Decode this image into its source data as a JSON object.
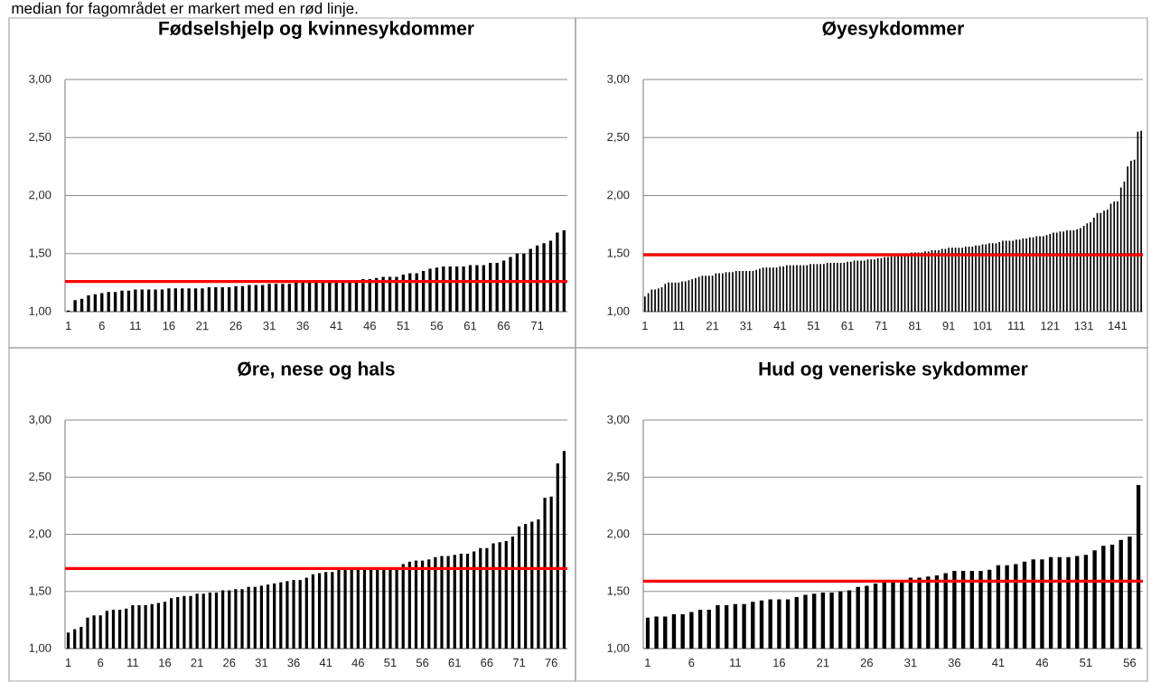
{
  "chart_data": [
    {
      "type": "bar",
      "title": "Fødselshjelp og kvinnesykdommer",
      "annotations": [
        "median for fagområdet er markert med en rød linje."
      ],
      "categories": [
        "1",
        null,
        null,
        null,
        null,
        "6",
        null,
        null,
        null,
        null,
        "11",
        null,
        null,
        null,
        null,
        "16",
        null,
        null,
        null,
        null,
        "21",
        null,
        null,
        null,
        null,
        "26",
        null,
        null,
        null,
        null,
        "31",
        null,
        null,
        null,
        null,
        "36",
        null,
        null,
        null,
        null,
        "41",
        null,
        null,
        null,
        null,
        "46",
        null,
        null,
        null,
        null,
        "51",
        null,
        null,
        null,
        null,
        "56",
        null,
        null,
        null,
        null,
        "61",
        null,
        null,
        null,
        null,
        "66",
        null,
        null,
        null,
        null,
        "71",
        null,
        null,
        null,
        null
      ],
      "values": [
        1.01,
        1.1,
        1.11,
        1.14,
        1.15,
        1.16,
        1.17,
        1.17,
        1.18,
        1.18,
        1.19,
        1.19,
        1.19,
        1.19,
        1.19,
        1.2,
        1.2,
        1.2,
        1.2,
        1.2,
        1.2,
        1.21,
        1.21,
        1.21,
        1.21,
        1.22,
        1.22,
        1.23,
        1.23,
        1.23,
        1.24,
        1.24,
        1.24,
        1.24,
        1.25,
        1.25,
        1.25,
        1.25,
        1.26,
        1.26,
        1.26,
        1.26,
        1.26,
        1.26,
        1.28,
        1.28,
        1.29,
        1.3,
        1.3,
        1.3,
        1.32,
        1.33,
        1.33,
        1.35,
        1.37,
        1.38,
        1.39,
        1.39,
        1.39,
        1.39,
        1.4,
        1.4,
        1.4,
        1.42,
        1.42,
        1.44,
        1.47,
        1.5,
        1.5,
        1.54,
        1.57,
        1.59,
        1.61,
        1.68,
        1.7
      ],
      "color": "#000000",
      "ylim": [
        1,
        3
      ],
      "yticks": [
        {
          "value": 1,
          "label": "1,00"
        },
        {
          "value": 1.5,
          "label": "1,50"
        },
        {
          "value": 2,
          "label": "2,00"
        },
        {
          "value": 2.5,
          "label": "2,50"
        },
        {
          "value": 3,
          "label": "3,00"
        }
      ],
      "grid": "y",
      "ref_lines": [
        {
          "axis": "y",
          "value": 1.26,
          "color": "#ff0000"
        }
      ]
    },
    {
      "type": "bar",
      "title": "Øyesykdommer",
      "categories": [
        "1",
        null,
        null,
        null,
        null,
        null,
        null,
        null,
        null,
        null,
        "11",
        null,
        null,
        null,
        null,
        null,
        null,
        null,
        null,
        null,
        "21",
        null,
        null,
        null,
        null,
        null,
        null,
        null,
        null,
        null,
        "31",
        null,
        null,
        null,
        null,
        null,
        null,
        null,
        null,
        null,
        "41",
        null,
        null,
        null,
        null,
        null,
        null,
        null,
        null,
        null,
        "51",
        null,
        null,
        null,
        null,
        null,
        null,
        null,
        null,
        null,
        "61",
        null,
        null,
        null,
        null,
        null,
        null,
        null,
        null,
        null,
        "71",
        null,
        null,
        null,
        null,
        null,
        null,
        null,
        null,
        null,
        "81",
        null,
        null,
        null,
        null,
        null,
        null,
        null,
        null,
        null,
        "91",
        null,
        null,
        null,
        null,
        null,
        null,
        null,
        null,
        null,
        "101",
        null,
        null,
        null,
        null,
        null,
        null,
        null,
        null,
        null,
        "111",
        null,
        null,
        null,
        null,
        null,
        null,
        null,
        null,
        null,
        "121",
        null,
        null,
        null,
        null,
        null,
        null,
        null,
        null,
        null,
        "131",
        null,
        null,
        null,
        null,
        null,
        null,
        null,
        null,
        null,
        "141",
        null,
        null,
        null,
        null,
        null,
        null,
        null
      ],
      "values": [
        1.13,
        1.16,
        1.19,
        1.19,
        1.2,
        1.21,
        1.24,
        1.25,
        1.25,
        1.25,
        1.25,
        1.26,
        1.26,
        1.27,
        1.28,
        1.29,
        1.3,
        1.31,
        1.31,
        1.31,
        1.31,
        1.33,
        1.33,
        1.33,
        1.34,
        1.34,
        1.34,
        1.35,
        1.35,
        1.35,
        1.35,
        1.35,
        1.35,
        1.36,
        1.37,
        1.38,
        1.38,
        1.38,
        1.38,
        1.38,
        1.39,
        1.39,
        1.4,
        1.4,
        1.4,
        1.4,
        1.4,
        1.4,
        1.4,
        1.41,
        1.41,
        1.41,
        1.41,
        1.41,
        1.42,
        1.42,
        1.42,
        1.42,
        1.42,
        1.42,
        1.43,
        1.43,
        1.44,
        1.44,
        1.44,
        1.44,
        1.45,
        1.45,
        1.45,
        1.46,
        1.46,
        1.47,
        1.47,
        1.48,
        1.48,
        1.48,
        1.48,
        1.49,
        1.49,
        1.51,
        1.51,
        1.51,
        1.51,
        1.52,
        1.52,
        1.53,
        1.53,
        1.53,
        1.54,
        1.54,
        1.55,
        1.55,
        1.55,
        1.55,
        1.55,
        1.56,
        1.56,
        1.56,
        1.57,
        1.57,
        1.58,
        1.58,
        1.59,
        1.59,
        1.59,
        1.6,
        1.61,
        1.61,
        1.61,
        1.61,
        1.62,
        1.62,
        1.63,
        1.63,
        1.64,
        1.64,
        1.65,
        1.65,
        1.65,
        1.66,
        1.67,
        1.68,
        1.68,
        1.69,
        1.69,
        1.7,
        1.7,
        1.7,
        1.71,
        1.72,
        1.74,
        1.76,
        1.77,
        1.81,
        1.85,
        1.85,
        1.87,
        1.88,
        1.93,
        1.95,
        1.95,
        2.07,
        2.12,
        2.25,
        2.3,
        2.31,
        2.55,
        2.56
      ],
      "color": "#000000",
      "ylim": [
        1,
        3
      ],
      "yticks": [
        {
          "value": 1,
          "label": "1,00"
        },
        {
          "value": 1.5,
          "label": "1,50"
        },
        {
          "value": 2,
          "label": "2,00"
        },
        {
          "value": 2.5,
          "label": "2,50"
        },
        {
          "value": 3,
          "label": "3,00"
        }
      ],
      "grid": "y",
      "ref_lines": [
        {
          "axis": "y",
          "value": 1.49,
          "color": "#ff0000"
        }
      ]
    },
    {
      "type": "bar",
      "title": "Øre, nese og hals",
      "categories": [
        "1",
        null,
        null,
        null,
        null,
        "6",
        null,
        null,
        null,
        null,
        "11",
        null,
        null,
        null,
        null,
        "16",
        null,
        null,
        null,
        null,
        "21",
        null,
        null,
        null,
        null,
        "26",
        null,
        null,
        null,
        null,
        "31",
        null,
        null,
        null,
        null,
        "36",
        null,
        null,
        null,
        null,
        "41",
        null,
        null,
        null,
        null,
        "46",
        null,
        null,
        null,
        null,
        "51",
        null,
        null,
        null,
        null,
        "56",
        null,
        null,
        null,
        null,
        "61",
        null,
        null,
        null,
        null,
        "66",
        null,
        null,
        null,
        null,
        "71",
        null,
        null,
        null,
        null,
        "76",
        null,
        null
      ],
      "values": [
        1.14,
        1.17,
        1.19,
        1.27,
        1.29,
        1.29,
        1.33,
        1.34,
        1.34,
        1.35,
        1.38,
        1.38,
        1.38,
        1.39,
        1.4,
        1.41,
        1.44,
        1.45,
        1.46,
        1.46,
        1.48,
        1.48,
        1.49,
        1.49,
        1.51,
        1.51,
        1.52,
        1.52,
        1.54,
        1.54,
        1.55,
        1.56,
        1.57,
        1.58,
        1.59,
        1.6,
        1.6,
        1.62,
        1.65,
        1.66,
        1.67,
        1.67,
        1.69,
        1.69,
        1.69,
        1.69,
        1.7,
        1.7,
        1.7,
        1.7,
        1.71,
        1.71,
        1.74,
        1.76,
        1.77,
        1.77,
        1.78,
        1.8,
        1.81,
        1.81,
        1.82,
        1.83,
        1.83,
        1.85,
        1.88,
        1.88,
        1.92,
        1.93,
        1.94,
        1.98,
        2.07,
        2.09,
        2.11,
        2.13,
        2.32,
        2.33,
        2.62,
        2.73
      ],
      "color": "#000000",
      "ylim": [
        1,
        3
      ],
      "yticks": [
        {
          "value": 1,
          "label": "1,00"
        },
        {
          "value": 1.5,
          "label": "1,50"
        },
        {
          "value": 2,
          "label": "2,00"
        },
        {
          "value": 2.5,
          "label": "2,50"
        },
        {
          "value": 3,
          "label": "3,00"
        }
      ],
      "grid": "y",
      "ref_lines": [
        {
          "axis": "y",
          "value": 1.7,
          "color": "#ff0000"
        }
      ]
    },
    {
      "type": "bar",
      "title": "Hud og veneriske sykdommer",
      "categories": [
        "1",
        null,
        null,
        null,
        null,
        "6",
        null,
        null,
        null,
        null,
        "11",
        null,
        null,
        null,
        null,
        "16",
        null,
        null,
        null,
        null,
        "21",
        null,
        null,
        null,
        null,
        "26",
        null,
        null,
        null,
        null,
        "31",
        null,
        null,
        null,
        null,
        "36",
        null,
        null,
        null,
        null,
        "41",
        null,
        null,
        null,
        null,
        "46",
        null,
        null,
        null,
        null,
        "51",
        null,
        null,
        null,
        null,
        "56",
        null
      ],
      "values": [
        1.27,
        1.28,
        1.28,
        1.3,
        1.3,
        1.32,
        1.34,
        1.34,
        1.38,
        1.38,
        1.39,
        1.39,
        1.41,
        1.42,
        1.43,
        1.43,
        1.43,
        1.45,
        1.47,
        1.48,
        1.49,
        1.49,
        1.5,
        1.51,
        1.54,
        1.55,
        1.57,
        1.59,
        1.59,
        1.59,
        1.62,
        1.62,
        1.63,
        1.64,
        1.66,
        1.68,
        1.68,
        1.68,
        1.68,
        1.69,
        1.73,
        1.73,
        1.74,
        1.76,
        1.78,
        1.78,
        1.8,
        1.8,
        1.8,
        1.81,
        1.82,
        1.86,
        1.9,
        1.91,
        1.95,
        1.98,
        2.43
      ],
      "color": "#000000",
      "ylim": [
        1,
        3
      ],
      "yticks": [
        {
          "value": 1,
          "label": "1,00"
        },
        {
          "value": 1.5,
          "label": "1,50"
        },
        {
          "value": 2,
          "label": "2,00"
        },
        {
          "value": 2.5,
          "label": "2,50"
        },
        {
          "value": 3,
          "label": "3,00"
        }
      ],
      "grid": "y",
      "ref_lines": [
        {
          "axis": "y",
          "value": 1.59,
          "color": "#ff0000"
        }
      ]
    }
  ]
}
